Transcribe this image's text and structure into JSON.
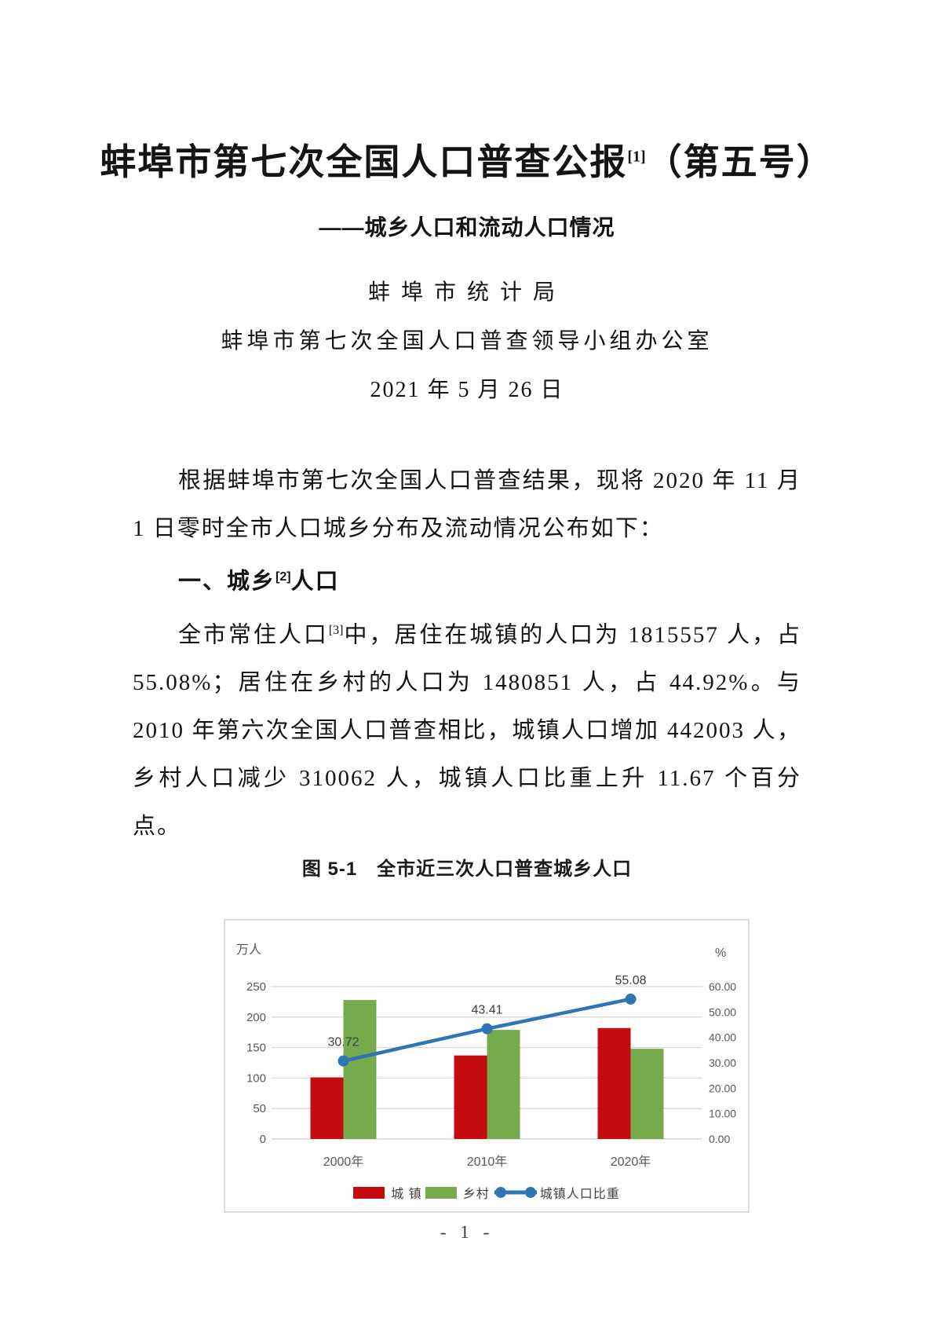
{
  "document": {
    "title": {
      "main": "蚌埠市第七次全国人口普查公报",
      "sup": "[1]",
      "suffix": "（第五号）"
    },
    "subtitle": "——城乡人口和流动人口情况",
    "authors": [
      "蚌埠市统计局",
      "蚌埠市第七次全国人口普查领导小组办公室"
    ],
    "date": "2021 年 5 月 26 日",
    "intro": "根据蚌埠市第七次全国人口普查结果，现将 2020 年 11 月 1 日零时全市人口城乡分布及流动情况公布如下：",
    "section1_heading": {
      "pre": "一、城乡",
      "sup": "[2]",
      "post": "人口"
    },
    "para1": {
      "pre": "全市常住人口",
      "sup": "[3]",
      "post": "中，居住在城镇的人口为 1815557 人，占 55.08%；居住在乡村的人口为 1480851 人，占 44.92%。与 2010 年第六次全国人口普查相比，城镇人口增加 442003 人，乡村人口减少 310062 人，城镇人口比重上升 11.67 个百分点。"
    },
    "figure_caption": "图 5-1　全市近三次人口普查城乡人口",
    "page_number": "- 1 -"
  },
  "chart_data": {
    "type": "bar",
    "title": "图 5-1 全市近三次人口普查城乡人口",
    "categories": [
      "2000年",
      "2010年",
      "2020年"
    ],
    "series": [
      {
        "name": "城 镇",
        "type": "bar",
        "axis": "left",
        "color": "#c40b0f",
        "values": [
          101,
          137,
          182
        ]
      },
      {
        "name": "乡村",
        "type": "bar",
        "axis": "left",
        "color": "#76ab4d",
        "values": [
          228,
          179,
          148
        ]
      },
      {
        "name": "城镇人口比重",
        "type": "line",
        "axis": "right",
        "color": "#2e75b6",
        "values": [
          30.72,
          43.41,
          55.08
        ],
        "data_labels": [
          "30.72",
          "43.41",
          "55.08"
        ]
      }
    ],
    "left_axis": {
      "unit": "万人",
      "min": 0,
      "max": 250,
      "step": 50,
      "ticks": [
        "0",
        "50",
        "100",
        "150",
        "200",
        "250"
      ]
    },
    "right_axis": {
      "unit": "%",
      "min": 0,
      "max": 60,
      "step": 10,
      "ticks": [
        "0.00",
        "10.00",
        "20.00",
        "30.00",
        "40.00",
        "50.00",
        "60.00"
      ]
    },
    "grid": true,
    "legend_position": "bottom",
    "colors": {
      "gridline": "#d9d9d9",
      "axis_text": "#595959",
      "data_label": "#3f3f3f",
      "border": "#dcdcdc"
    }
  }
}
